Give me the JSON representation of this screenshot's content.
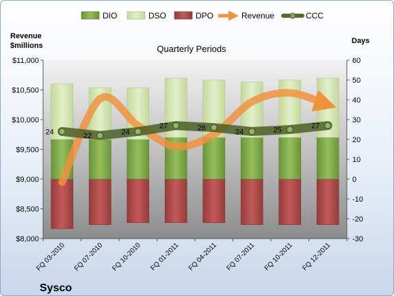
{
  "chart_data": {
    "type": "bar",
    "title": "Quarterly Periods",
    "company": "Sysco",
    "left_axis_label": [
      "Revenue",
      "$millions"
    ],
    "right_axis_label": "Days",
    "left_ylim": [
      8000,
      11000
    ],
    "left_ticks": [
      "$8,000",
      "$8,500",
      "$9,000",
      "$9,500",
      "$10,000",
      "$10,500",
      "$11,000"
    ],
    "right_ylim": [
      -30,
      60
    ],
    "right_ticks": [
      "-30",
      "-20",
      "-10",
      "0",
      "10",
      "20",
      "30",
      "40",
      "50",
      "60"
    ],
    "categories": [
      "FQ 03-2010",
      "FQ 07-2010",
      "FQ 10-2010",
      "FQ 01-2011",
      "FQ 04-2011",
      "FQ 07-2011",
      "FQ 10-2011",
      "FQ 12-2011"
    ],
    "legend_position": "top",
    "series": [
      {
        "name": "DIO",
        "axis": "right",
        "kind": "stacked-bar",
        "color": "#7fa84a",
        "values": [
          20,
          20,
          20,
          21,
          21,
          21,
          21,
          21
        ]
      },
      {
        "name": "DSO",
        "axis": "right",
        "kind": "stacked-bar",
        "color": "#d5e5b3",
        "values": [
          28,
          26,
          26,
          30,
          29,
          28,
          29,
          30
        ]
      },
      {
        "name": "DPO",
        "axis": "right",
        "kind": "stacked-bar-negative",
        "color": "#b24a4a",
        "values": [
          -25,
          -23,
          -22,
          -22,
          -22,
          -23,
          -23,
          -23
        ]
      },
      {
        "name": "Revenue",
        "axis": "left",
        "kind": "smooth-arrow-line",
        "color": "#f0913c",
        "values": [
          8950,
          10350,
          9900,
          9550,
          9750,
          10300,
          10450,
          10250
        ]
      },
      {
        "name": "CCC",
        "axis": "right",
        "kind": "line-markers",
        "color": "#556b30",
        "values": [
          24,
          22,
          24,
          27,
          26,
          24,
          25,
          27
        ],
        "labels": [
          "24",
          "22",
          "24",
          "27",
          "26",
          "24",
          "25",
          "27"
        ]
      }
    ],
    "grid": false
  }
}
